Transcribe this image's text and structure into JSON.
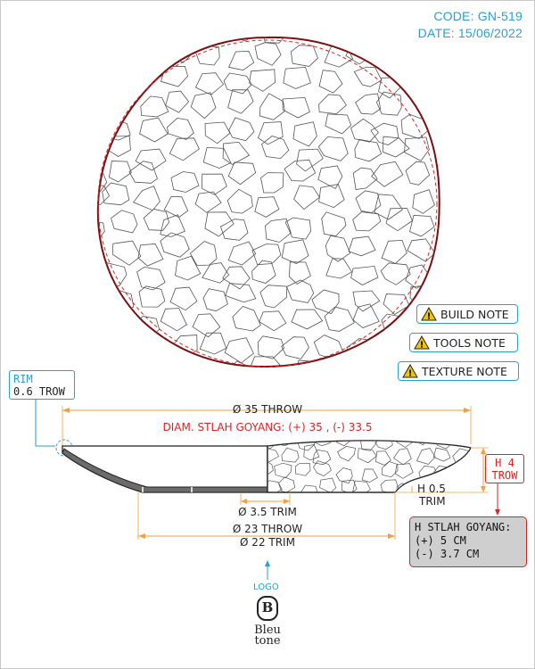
{
  "header": {
    "code": "CODE: GN-519",
    "date": "DATE: 15/06/2022"
  },
  "notes": {
    "build": "BUILD NOTE",
    "tools": "TOOLS NOTE",
    "texture": "TEXTURE NOTE"
  },
  "rim": {
    "title": "RIM",
    "value": "0.6 TROW"
  },
  "dims": {
    "diameter_throw": "Ø 35 THROW",
    "diameter_goyang": "DIAM. STLAH GOYANG: (+) 35 , (-) 33.5",
    "foot_trim": "Ø 3.5 TRIM",
    "base_throw": "Ø 23 THROW",
    "base_trim": "Ø 22 TRIM",
    "height_trim": "H 0.5",
    "height_trim_unit": "TRIM",
    "height_throw": "H 4",
    "height_throw_unit": "TROW"
  },
  "goyang_box": {
    "title": "H STLAH GOYANG:",
    "plus": "(+) 5 CM",
    "minus": "(-) 3.7 CM"
  },
  "logo": {
    "label": "LOGO",
    "mark": "B",
    "brand_line1": "Bleu",
    "brand_line2": "tone"
  },
  "colors": {
    "accent": "#2a9fd6",
    "dimension": "#f0a040",
    "alert": "#d22222",
    "outline": "#7a1010"
  }
}
